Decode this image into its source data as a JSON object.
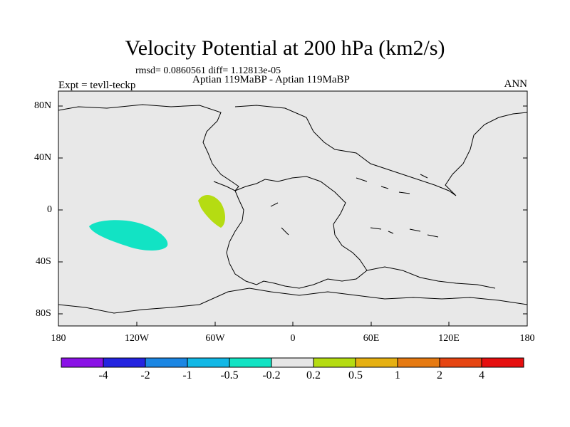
{
  "title": "Velocity Potential at 200 hPa (km2/s)",
  "stats": "rmsd= 0.0860561 diff= 1.12813e-05",
  "experiment": "Expt = tevll-teckp",
  "comparison": "Aptian   119MaBP - Aptian   119MaBP",
  "season": "ANN",
  "y_ticks": [
    "80N",
    "40N",
    "0",
    "40S",
    "80S"
  ],
  "x_ticks": [
    "180",
    "120W",
    "60W",
    "0",
    "60E",
    "120E",
    "180"
  ],
  "colorbar": {
    "labels": [
      "-4",
      "-2",
      "-1",
      "-0.5",
      "-0.2",
      "0.2",
      "0.5",
      "1",
      "2",
      "4"
    ],
    "colors": [
      "#8a12e6",
      "#2424e0",
      "#1b86e3",
      "#12b8e6",
      "#12e3c4",
      "#e6e6e6",
      "#b5dc12",
      "#e6b012",
      "#e67a12",
      "#e64512",
      "#e60f0f"
    ]
  },
  "colors": {
    "land_fill": "#e8e8e8",
    "outline": "#000000",
    "negative_patch": "#12e3c4",
    "positive_patch": "#b5dc12"
  }
}
